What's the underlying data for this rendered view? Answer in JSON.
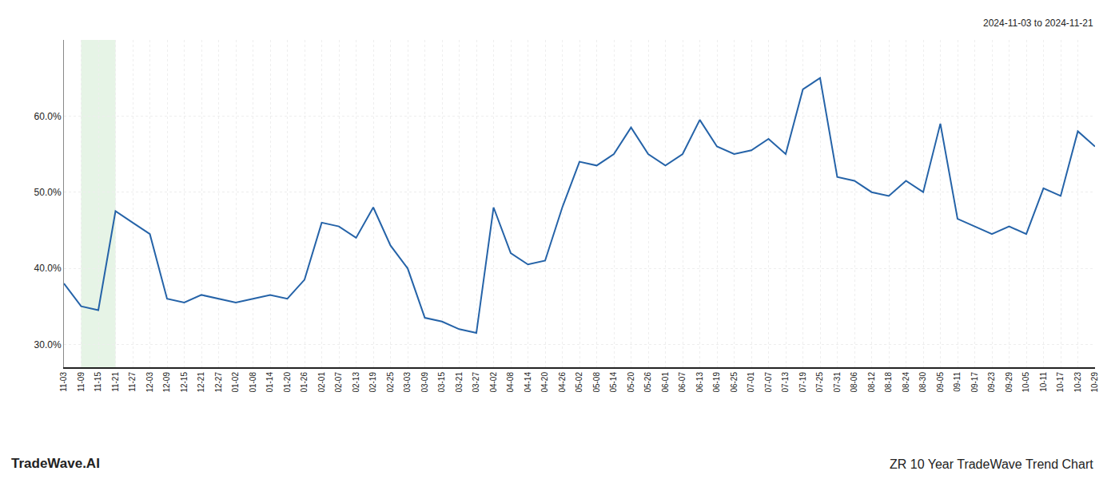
{
  "chart_data": {
    "type": "line",
    "annotations": [
      "2024-11-03 to 2024-11-21",
      "TradeWave.AI",
      "ZR 10 Year TradeWave Trend Chart"
    ],
    "categories": [
      "11-03",
      "11-09",
      "11-15",
      "11-21",
      "11-27",
      "12-03",
      "12-09",
      "12-15",
      "12-21",
      "12-27",
      "01-02",
      "01-08",
      "01-14",
      "01-20",
      "01-26",
      "02-01",
      "02-07",
      "02-13",
      "02-19",
      "02-25",
      "03-03",
      "03-09",
      "03-15",
      "03-21",
      "03-27",
      "04-02",
      "04-08",
      "04-14",
      "04-20",
      "04-26",
      "05-02",
      "05-08",
      "05-14",
      "05-20",
      "05-26",
      "06-01",
      "06-07",
      "06-13",
      "06-19",
      "06-25",
      "07-01",
      "07-07",
      "07-13",
      "07-19",
      "07-25",
      "07-31",
      "08-06",
      "08-12",
      "08-18",
      "08-24",
      "08-30",
      "09-05",
      "09-11",
      "09-17",
      "09-23",
      "09-29",
      "10-05",
      "10-11",
      "10-17",
      "10-23",
      "10-29"
    ],
    "values": [
      38.0,
      35.0,
      34.5,
      47.5,
      46.0,
      44.5,
      36.0,
      35.5,
      36.5,
      36.0,
      35.5,
      36.0,
      36.5,
      36.0,
      38.5,
      46.0,
      45.5,
      44.0,
      48.0,
      43.0,
      40.0,
      33.5,
      33.0,
      32.0,
      31.5,
      48.0,
      42.0,
      40.5,
      41.0,
      48.0,
      54.0,
      53.5,
      55.0,
      58.5,
      55.0,
      53.5,
      55.0,
      59.5,
      56.0,
      55.0,
      55.5,
      57.0,
      55.0,
      63.5,
      65.0,
      52.0,
      51.5,
      50.0,
      49.5,
      51.5,
      50.0,
      59.0,
      46.5,
      45.5,
      44.5,
      45.5,
      44.5,
      50.5,
      49.5,
      58.0,
      56.0
    ],
    "color": "#2563a8",
    "ylim": [
      27.0,
      70.0
    ],
    "yticks": [
      {
        "value": 30.0,
        "label": "30.0%"
      },
      {
        "value": 40.0,
        "label": "40.0%"
      },
      {
        "value": 50.0,
        "label": "50.0%"
      },
      {
        "value": 60.0,
        "label": "60.0%"
      }
    ],
    "grid": true,
    "span": {
      "from": "11-09",
      "to": "11-21",
      "color": "#d6ecd6"
    }
  }
}
